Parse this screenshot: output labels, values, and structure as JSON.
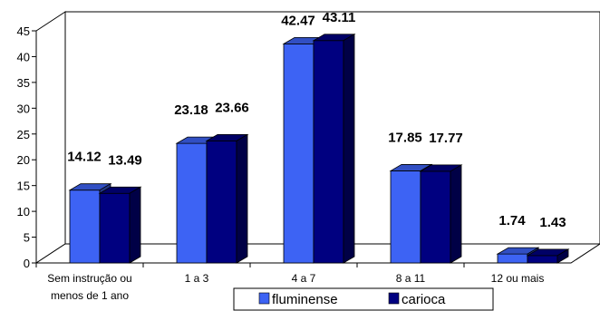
{
  "chart_data": {
    "type": "bar",
    "categories": [
      "Sem instrução ou menos de 1 ano",
      "1 a 3",
      "4 a 7",
      "8 a 11",
      "12 ou mais"
    ],
    "category_lines": [
      [
        "Sem instrução ou",
        "menos de 1 ano"
      ],
      [
        "1 a 3"
      ],
      [
        "4 a 7"
      ],
      [
        "8 a 11"
      ],
      [
        "12 ou mais"
      ]
    ],
    "series": [
      {
        "name": "fluminense",
        "values": [
          14.12,
          23.18,
          42.47,
          17.85,
          1.74
        ],
        "color": "#3d63f4"
      },
      {
        "name": "carioca",
        "values": [
          13.49,
          23.66,
          43.11,
          17.77,
          1.43
        ],
        "color": "#000080"
      }
    ],
    "data_labels": [
      [
        "14.12",
        "23.18",
        "42.47",
        "17.85",
        "1.74"
      ],
      [
        "13.49",
        "23.66",
        "43.11",
        "17.77",
        "1.43"
      ]
    ],
    "ylim": [
      0,
      45
    ],
    "yticks": [
      "0",
      "5",
      "10",
      "15",
      "20",
      "25",
      "30",
      "35",
      "40",
      "45"
    ],
    "title": "",
    "xlabel": "",
    "ylabel": "",
    "grid": false,
    "legend_position": "bottom",
    "three_d": true
  }
}
